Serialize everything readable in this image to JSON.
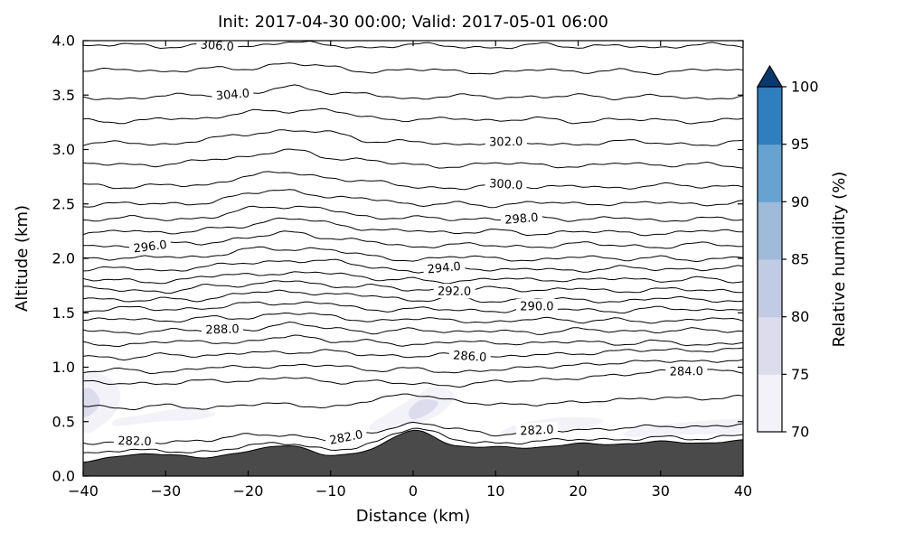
{
  "figure": {
    "background": "#ffffff"
  },
  "chart_data": {
    "type": "contour",
    "title": "Init: 2017-04-30 00:00; Valid: 2017-05-01 06:00",
    "xlabel": "Distance (km)",
    "ylabel": "Altitude (km)",
    "xlim": [
      -40,
      40
    ],
    "ylim": [
      0,
      4
    ],
    "xticks": [
      -40,
      -30,
      -20,
      -10,
      0,
      10,
      20,
      30,
      40
    ],
    "xtick_labels": [
      "−40",
      "−30",
      "−20",
      "−10",
      "0",
      "10",
      "20",
      "30",
      "40"
    ],
    "yticks": [
      0,
      0.5,
      1,
      1.5,
      2,
      2.5,
      3,
      3.5,
      4
    ],
    "ytick_labels": [
      "0.0",
      "0.5",
      "1.0",
      "1.5",
      "2.0",
      "2.5",
      "3.0",
      "3.5",
      "4.0"
    ],
    "line_color": "#000000",
    "x_samples": [
      -40,
      -35,
      -30,
      -25,
      -20,
      -15,
      -10,
      -5,
      0,
      5,
      10,
      15,
      20,
      25,
      30,
      35,
      40
    ],
    "contours": [
      {
        "level": 306,
        "label": "306.0",
        "labels_at": [
          -24
        ],
        "y": [
          3.95,
          3.97,
          3.94,
          3.96,
          3.94,
          3.99,
          3.96,
          3.93,
          3.97,
          3.95,
          3.93,
          3.97,
          3.94,
          3.96,
          3.93,
          3.97,
          3.95
        ]
      },
      {
        "level": 305,
        "label": "305.0",
        "labels_at": [],
        "y": [
          3.72,
          3.74,
          3.71,
          3.75,
          3.74,
          3.79,
          3.76,
          3.71,
          3.74,
          3.72,
          3.7,
          3.74,
          3.71,
          3.73,
          3.7,
          3.74,
          3.72
        ]
      },
      {
        "level": 304,
        "label": "304.0",
        "labels_at": [
          -22
        ],
        "y": [
          3.48,
          3.46,
          3.5,
          3.5,
          3.51,
          3.58,
          3.52,
          3.51,
          3.46,
          3.5,
          3.48,
          3.48,
          3.5,
          3.47,
          3.5,
          3.46,
          3.49
        ]
      },
      {
        "level": 303,
        "label": "303.0",
        "labels_at": [],
        "y": [
          3.27,
          3.25,
          3.29,
          3.28,
          3.35,
          3.35,
          3.36,
          3.29,
          3.27,
          3.29,
          3.26,
          3.29,
          3.25,
          3.28,
          3.27,
          3.25,
          3.29
        ]
      },
      {
        "level": 302,
        "label": "302.0",
        "labels_at": [
          11
        ],
        "y": [
          3.05,
          3.07,
          3.04,
          3.1,
          3.14,
          3.17,
          3.16,
          3.07,
          3.08,
          3.04,
          3.07,
          3.06,
          3.04,
          3.08,
          3.06,
          3.04,
          3.08
        ]
      },
      {
        "level": 301,
        "label": "301.0",
        "labels_at": [],
        "y": [
          2.88,
          2.86,
          2.86,
          2.91,
          2.93,
          3.0,
          2.92,
          2.9,
          2.86,
          2.84,
          2.88,
          2.86,
          2.84,
          2.88,
          2.85,
          2.87,
          2.84
        ]
      },
      {
        "level": 300,
        "label": "300.0",
        "labels_at": [
          11
        ],
        "y": [
          2.68,
          2.65,
          2.68,
          2.67,
          2.76,
          2.79,
          2.73,
          2.71,
          2.66,
          2.64,
          2.68,
          2.65,
          2.67,
          2.64,
          2.68,
          2.66,
          2.66
        ]
      },
      {
        "level": 299,
        "label": "299.0",
        "labels_at": [],
        "y": [
          2.48,
          2.51,
          2.5,
          2.51,
          2.6,
          2.62,
          2.56,
          2.55,
          2.49,
          2.51,
          2.48,
          2.52,
          2.5,
          2.5,
          2.52,
          2.49,
          2.52
        ]
      },
      {
        "level": 298,
        "label": "298.0",
        "labels_at": [
          13
        ],
        "y": [
          2.34,
          2.38,
          2.36,
          2.37,
          2.46,
          2.47,
          2.45,
          2.37,
          2.38,
          2.36,
          2.36,
          2.38,
          2.35,
          2.38,
          2.34,
          2.37,
          2.36
        ]
      },
      {
        "level": 297,
        "label": "297.0",
        "labels_at": [],
        "y": [
          2.22,
          2.26,
          2.23,
          2.27,
          2.3,
          2.37,
          2.32,
          2.26,
          2.26,
          2.23,
          2.26,
          2.22,
          2.25,
          2.24,
          2.22,
          2.26,
          2.24
        ]
      },
      {
        "level": 296,
        "label": "296.0",
        "labels_at": [
          -32
        ],
        "y": [
          2.13,
          2.1,
          2.14,
          2.14,
          2.19,
          2.24,
          2.18,
          2.16,
          2.1,
          2.13,
          2.12,
          2.1,
          2.14,
          2.12,
          2.1,
          2.14,
          2.11
        ]
      },
      {
        "level": 295,
        "label": "295.0",
        "labels_at": [],
        "y": [
          2.0,
          2.0,
          2.02,
          2.01,
          2.09,
          2.08,
          2.08,
          2.02,
          1.98,
          2.02,
          2.0,
          1.98,
          2.02,
          1.99,
          2.01,
          1.98,
          2.02
        ]
      },
      {
        "level": 294,
        "label": "294.0",
        "labels_at": [
          4
        ],
        "y": [
          1.89,
          1.92,
          1.88,
          1.93,
          1.96,
          1.97,
          1.98,
          1.92,
          1.88,
          1.92,
          1.89,
          1.91,
          1.88,
          1.92,
          1.9,
          1.9,
          1.92
        ]
      },
      {
        "level": 293,
        "label": "293.0",
        "labels_at": [],
        "y": [
          1.81,
          1.8,
          1.78,
          1.84,
          1.85,
          1.86,
          1.87,
          1.81,
          1.81,
          1.78,
          1.82,
          1.8,
          1.8,
          1.82,
          1.79,
          1.82,
          1.78
        ]
      },
      {
        "level": 292,
        "label": "292.0",
        "labels_at": [
          5
        ],
        "y": [
          1.73,
          1.71,
          1.69,
          1.75,
          1.75,
          1.8,
          1.74,
          1.75,
          1.71,
          1.71,
          1.73,
          1.7,
          1.73,
          1.69,
          1.72,
          1.71,
          1.69
        ]
      },
      {
        "level": 291,
        "label": "291.0",
        "labels_at": [],
        "y": [
          1.64,
          1.61,
          1.63,
          1.62,
          1.69,
          1.69,
          1.67,
          1.66,
          1.61,
          1.64,
          1.6,
          1.63,
          1.62,
          1.6,
          1.64,
          1.62,
          1.6
        ]
      },
      {
        "level": 290,
        "label": "290.0",
        "labels_at": [
          15
        ],
        "y": [
          1.51,
          1.55,
          1.53,
          1.54,
          1.59,
          1.58,
          1.59,
          1.52,
          1.54,
          1.53,
          1.51,
          1.55,
          1.53,
          1.51,
          1.55,
          1.52,
          1.54
        ]
      },
      {
        "level": 289,
        "label": "289.0",
        "labels_at": [],
        "y": [
          1.43,
          1.45,
          1.42,
          1.46,
          1.45,
          1.5,
          1.47,
          1.42,
          1.45,
          1.43,
          1.41,
          1.45,
          1.42,
          1.44,
          1.41,
          1.45,
          1.43
        ]
      },
      {
        "level": 288,
        "label": "288.0",
        "labels_at": [
          -23
        ],
        "y": [
          1.35,
          1.31,
          1.34,
          1.34,
          1.34,
          1.4,
          1.36,
          1.32,
          1.35,
          1.32,
          1.34,
          1.31,
          1.35,
          1.33,
          1.33,
          1.35,
          1.32
        ]
      },
      {
        "level": 287,
        "label": "287.0",
        "labels_at": [],
        "y": [
          1.22,
          1.2,
          1.24,
          1.23,
          1.23,
          1.29,
          1.24,
          1.24,
          1.2,
          1.24,
          1.22,
          1.22,
          1.24,
          1.21,
          1.24,
          1.2,
          1.23
        ]
      },
      {
        "level": 286,
        "label": "286.0",
        "labels_at": [
          7
        ],
        "y": [
          1.1,
          1.08,
          1.12,
          1.1,
          1.14,
          1.13,
          1.15,
          1.11,
          1.1,
          1.12,
          1.09,
          1.12,
          1.12,
          1.15,
          1.16,
          1.15,
          1.17
        ]
      },
      {
        "level": 285,
        "label": "285.0",
        "labels_at": [],
        "y": [
          0.96,
          0.98,
          0.95,
          1.0,
          1.0,
          1.01,
          1.02,
          0.97,
          0.99,
          0.95,
          0.98,
          1.0,
          1.02,
          1.04,
          1.06,
          1.05,
          1.07
        ]
      },
      {
        "level": 284,
        "label": "284.0",
        "labels_at": [
          33
        ],
        "y": [
          0.87,
          0.85,
          0.85,
          0.88,
          0.87,
          0.91,
          0.86,
          0.87,
          0.85,
          0.83,
          0.87,
          0.88,
          0.9,
          0.93,
          0.96,
          0.97,
          0.96
        ]
      },
      {
        "level": 283,
        "label": "283.0",
        "labels_at": [],
        "y": [
          0.65,
          0.62,
          0.65,
          0.62,
          0.66,
          0.66,
          0.63,
          0.7,
          0.75,
          0.69,
          0.66,
          0.66,
          0.68,
          0.7,
          0.72,
          0.71,
          0.73
        ]
      },
      {
        "level": 282,
        "label": "282.0",
        "labels_at": [
          -34,
          -8,
          15
        ],
        "y": [
          0.3,
          0.32,
          0.31,
          0.33,
          0.38,
          0.37,
          0.34,
          0.4,
          0.48,
          0.44,
          0.38,
          0.42,
          0.42,
          0.44,
          0.46,
          0.45,
          0.48
        ]
      },
      {
        "level": 281,
        "label": "281.0",
        "labels_at": [],
        "y": [
          0.2,
          0.24,
          0.23,
          0.22,
          0.28,
          0.3,
          0.24,
          0.3,
          0.44,
          0.34,
          0.3,
          0.32,
          0.34,
          0.33,
          0.36,
          0.34,
          0.38
        ]
      }
    ],
    "terrain": {
      "color": "#4a4a4a",
      "x": [
        -40,
        -35,
        -30,
        -25,
        -20,
        -15,
        -10,
        -5,
        0,
        5,
        10,
        15,
        20,
        25,
        30,
        35,
        40
      ],
      "height": [
        0.13,
        0.19,
        0.2,
        0.17,
        0.23,
        0.28,
        0.19,
        0.25,
        0.42,
        0.28,
        0.27,
        0.26,
        0.3,
        0.29,
        0.32,
        0.3,
        0.33
      ]
    },
    "humidity_patches": [
      {
        "color_bin": 0,
        "points": [
          [
            -40,
            0.42
          ],
          [
            -37.5,
            0.48
          ],
          [
            -36,
            0.6
          ],
          [
            -35.5,
            0.75
          ],
          [
            -36.5,
            0.88
          ],
          [
            -38.5,
            0.95
          ],
          [
            -40,
            0.92
          ]
        ]
      },
      {
        "color_bin": 1,
        "points": [
          [
            -40,
            0.55
          ],
          [
            -38.5,
            0.6
          ],
          [
            -38,
            0.7
          ],
          [
            -39,
            0.8
          ],
          [
            -40,
            0.78
          ]
        ]
      },
      {
        "color_bin": 0,
        "points": [
          [
            -36,
            0.46
          ],
          [
            -31,
            0.5
          ],
          [
            -26,
            0.52
          ],
          [
            -24,
            0.58
          ],
          [
            -28,
            0.62
          ],
          [
            -33,
            0.56
          ],
          [
            -36,
            0.52
          ]
        ]
      },
      {
        "color_bin": 0,
        "points": [
          [
            -5,
            0.42
          ],
          [
            -1,
            0.46
          ],
          [
            2,
            0.52
          ],
          [
            4,
            0.62
          ],
          [
            5,
            0.75
          ],
          [
            2.5,
            0.82
          ],
          [
            0,
            0.72
          ],
          [
            -3,
            0.58
          ],
          [
            -5,
            0.48
          ]
        ]
      },
      {
        "color_bin": 1,
        "points": [
          [
            0,
            0.52
          ],
          [
            2,
            0.58
          ],
          [
            3,
            0.68
          ],
          [
            1,
            0.7
          ],
          [
            -0.5,
            0.6
          ]
        ]
      },
      {
        "color_bin": 0,
        "points": [
          [
            11,
            0.38
          ],
          [
            16,
            0.4
          ],
          [
            21,
            0.44
          ],
          [
            23,
            0.52
          ],
          [
            18,
            0.54
          ],
          [
            13,
            0.48
          ],
          [
            11,
            0.42
          ]
        ]
      },
      {
        "color_bin": 0,
        "points": [
          [
            26,
            0.36
          ],
          [
            33,
            0.38
          ],
          [
            40,
            0.4
          ],
          [
            40,
            0.52
          ],
          [
            34,
            0.5
          ],
          [
            27,
            0.44
          ]
        ]
      }
    ],
    "colorbar": {
      "label": "Relative humidity (%)",
      "ticks": [
        70,
        75,
        80,
        85,
        90,
        95,
        100
      ],
      "tick_labels": [
        "70",
        "75",
        "80",
        "85",
        "90",
        "95",
        "100"
      ],
      "segment_colors": [
        "#f4f2f9",
        "#dcdcec",
        "#c1cbe3",
        "#9fbbda",
        "#66a3d1",
        "#2f7fbe"
      ],
      "over_color": "#083a70"
    }
  }
}
